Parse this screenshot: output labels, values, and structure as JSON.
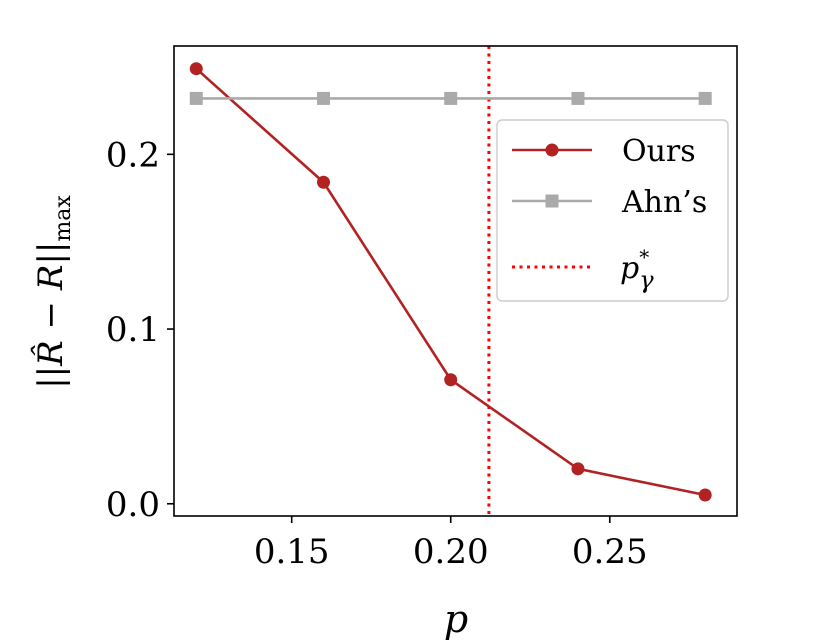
{
  "chart_data": {
    "type": "line",
    "title": "",
    "xlabel": "p",
    "ylabel": "||R̂ − R||max",
    "xlim": [
      0.113,
      0.29
    ],
    "ylim": [
      -0.007,
      0.262
    ],
    "xticks": [
      0.15,
      0.2,
      0.25
    ],
    "xtick_labels": [
      "0.15",
      "0.20",
      "0.25"
    ],
    "yticks": [
      0.0,
      0.1,
      0.2
    ],
    "ytick_labels": [
      "0.0",
      "0.1",
      "0.2"
    ],
    "grid": false,
    "legend_position": "upper right",
    "x": [
      0.12,
      0.16,
      0.2,
      0.24,
      0.28
    ],
    "series": [
      {
        "name": "Ours",
        "values": [
          0.249,
          0.184,
          0.071,
          0.02,
          0.005
        ],
        "color": "#b22222",
        "marker": "circle",
        "style": "solid"
      },
      {
        "name": "Ahn’s",
        "values": [
          0.232,
          0.232,
          0.232,
          0.232,
          0.232
        ],
        "color": "#aaaaaa",
        "marker": "square",
        "style": "solid"
      }
    ],
    "vline": {
      "name": "p*γ",
      "x": 0.212,
      "color": "#ff0000",
      "style": "dotted"
    }
  }
}
